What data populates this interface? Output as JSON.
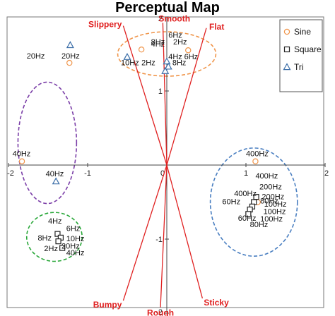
{
  "chart_data": {
    "type": "scatter",
    "title": "Perceptual Map",
    "xlim": [
      -2,
      2
    ],
    "ylim": [
      -2,
      2
    ],
    "x_ticks": [
      "-2",
      "-1",
      "0",
      "1",
      "2"
    ],
    "y_ticks": [
      "2",
      "1",
      "-1",
      "-2"
    ],
    "legend": {
      "placement": "top-right",
      "entries": [
        {
          "name": "Sine",
          "marker": "circle",
          "color": "#f0954a"
        },
        {
          "name": "Square",
          "marker": "square",
          "color": "#222222"
        },
        {
          "name": "Tri",
          "marker": "triangle",
          "color": "#3b6ea8"
        }
      ]
    },
    "series": [
      {
        "name": "Sine",
        "marker": "circle",
        "color": "#f0954a",
        "points": [
          [
            -0.32,
            1.56
          ],
          [
            0.27,
            1.55
          ],
          [
            -1.23,
            1.38
          ],
          [
            -1.83,
            0.05
          ],
          [
            1.12,
            0.05
          ],
          [
            1.15,
            -0.5
          ]
        ]
      },
      {
        "name": "Square",
        "marker": "square",
        "color": "#222222",
        "points": [
          [
            -1.38,
            -0.93
          ],
          [
            -1.34,
            -0.98
          ],
          [
            -1.37,
            -1.03
          ],
          [
            -1.32,
            -1.12
          ],
          [
            1.1,
            -0.5
          ],
          [
            1.08,
            -0.56
          ],
          [
            1.05,
            -0.6
          ],
          [
            1.03,
            -0.66
          ],
          [
            1.13,
            -0.43
          ]
        ]
      },
      {
        "name": "Tri",
        "marker": "triangle",
        "color": "#3b6ea8",
        "points": [
          [
            -0.5,
            1.46
          ],
          [
            0.0,
            1.4
          ],
          [
            0.02,
            1.33
          ],
          [
            -0.02,
            1.27
          ],
          [
            -1.22,
            1.62
          ],
          [
            -1.4,
            -0.22
          ]
        ]
      }
    ],
    "point_labels": [
      {
        "text": "4Hz",
        "x": -0.2,
        "y": 1.6
      },
      {
        "text": "6Hz",
        "x": 0.02,
        "y": 1.72
      },
      {
        "text": "8Hz",
        "x": -0.2,
        "y": 1.63
      },
      {
        "text": "2Hz",
        "x": 0.08,
        "y": 1.63
      },
      {
        "text": "4Hz",
        "x": 0.02,
        "y": 1.43
      },
      {
        "text": "6Hz",
        "x": 0.22,
        "y": 1.43
      },
      {
        "text": "10Hz",
        "x": -0.58,
        "y": 1.35
      },
      {
        "text": "2Hz",
        "x": -0.32,
        "y": 1.35
      },
      {
        "text": "8Hz",
        "x": 0.07,
        "y": 1.35
      },
      {
        "text": "20Hz",
        "x": -1.77,
        "y": 1.44
      },
      {
        "text": "20Hz",
        "x": -1.33,
        "y": 1.44
      },
      {
        "text": "40Hz",
        "x": -1.95,
        "y": 0.12
      },
      {
        "text": "40Hz",
        "x": -1.53,
        "y": -0.15
      },
      {
        "text": "4Hz",
        "x": -1.5,
        "y": -0.79
      },
      {
        "text": "6Hz",
        "x": -1.27,
        "y": -0.89
      },
      {
        "text": "8Hz",
        "x": -1.63,
        "y": -1.02
      },
      {
        "text": "10Hz",
        "x": -1.27,
        "y": -1.03
      },
      {
        "text": "20Hz",
        "x": -1.33,
        "y": -1.13
      },
      {
        "text": "2Hz",
        "x": -1.55,
        "y": -1.16
      },
      {
        "text": "40Hz",
        "x": -1.27,
        "y": -1.22
      },
      {
        "text": "400Hz",
        "x": 1.0,
        "y": 0.12
      },
      {
        "text": "400Hz",
        "x": 1.12,
        "y": -0.18
      },
      {
        "text": "200Hz",
        "x": 1.17,
        "y": -0.33
      },
      {
        "text": "400Hz",
        "x": 0.85,
        "y": -0.42
      },
      {
        "text": "200Hz",
        "x": 1.2,
        "y": -0.46
      },
      {
        "text": "60Hz",
        "x": 0.7,
        "y": -0.53
      },
      {
        "text": "80Hz",
        "x": 1.18,
        "y": -0.52
      },
      {
        "text": "100Hz",
        "x": 1.23,
        "y": -0.56
      },
      {
        "text": "100Hz",
        "x": 1.22,
        "y": -0.66
      },
      {
        "text": "60Hz",
        "x": 0.9,
        "y": -0.75
      },
      {
        "text": "100Hz",
        "x": 1.18,
        "y": -0.76
      },
      {
        "text": "80Hz",
        "x": 1.05,
        "y": -0.84
      }
    ],
    "vectors": [
      {
        "name": "Slippery",
        "x": -0.55,
        "y": 1.88
      },
      {
        "name": "Smooth",
        "x": -0.05,
        "y": 1.92
      },
      {
        "name": "Flat",
        "x": 0.5,
        "y": 1.85
      },
      {
        "name": "Bumpy",
        "x": -0.55,
        "y": -1.83
      },
      {
        "name": "Rough",
        "x": -0.08,
        "y": -1.92
      },
      {
        "name": "Sticky",
        "x": 0.45,
        "y": -1.8
      }
    ],
    "vector_color": "#e02020",
    "clusters": [
      {
        "cx": 0.0,
        "cy": 1.5,
        "rx": 0.62,
        "ry": 0.3,
        "color": "#f0954a"
      },
      {
        "cx": -1.51,
        "cy": 0.3,
        "rx": 0.37,
        "ry": 0.82,
        "color": "#7b3fa8"
      },
      {
        "cx": -1.42,
        "cy": -0.97,
        "rx": 0.35,
        "ry": 0.33,
        "color": "#2aa83a"
      },
      {
        "cx": 1.1,
        "cy": -0.5,
        "rx": 0.55,
        "ry": 0.73,
        "color": "#4a7fc1"
      }
    ],
    "grid": false
  }
}
